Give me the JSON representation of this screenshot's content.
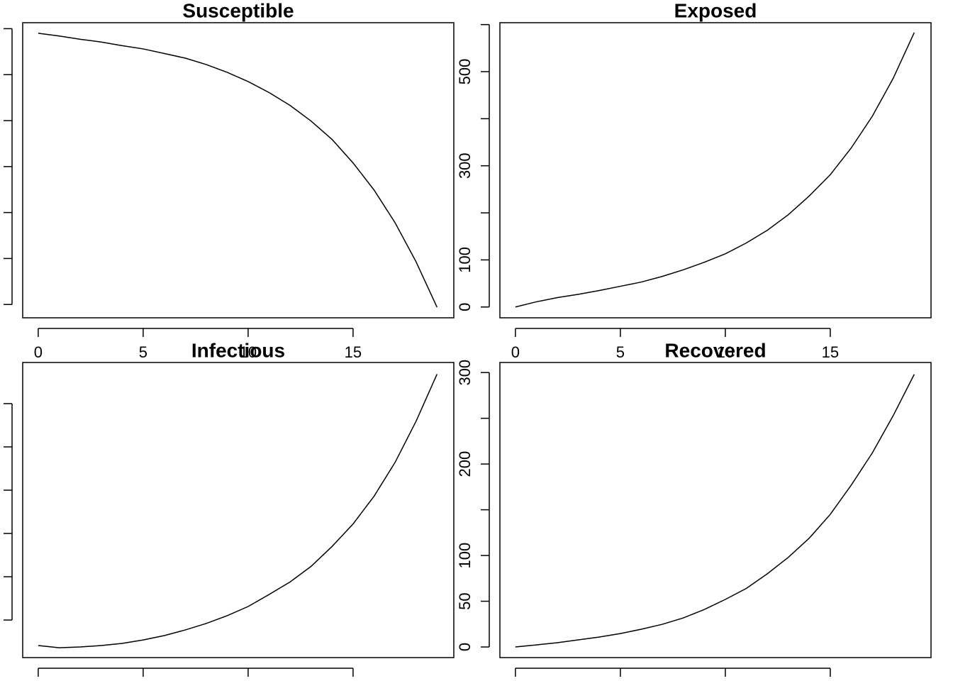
{
  "chart_data": [
    {
      "type": "line",
      "title": "Susceptible",
      "color": "#000000",
      "x": [
        0,
        1,
        2,
        3,
        4,
        5,
        6,
        7,
        8,
        9,
        10,
        11,
        12,
        13,
        14,
        15,
        16,
        17,
        18,
        19
      ],
      "values": [
        990,
        984,
        977,
        971,
        963,
        956,
        946,
        936,
        922,
        905,
        885,
        861,
        833,
        799,
        759,
        708,
        649,
        578,
        493,
        394
      ],
      "xlim": [
        -0.74,
        19.8
      ],
      "ylim": [
        371,
        1013
      ],
      "xticks": [
        0,
        5,
        10,
        15
      ],
      "xticks_unlabeled": [],
      "yticks": [],
      "yticks_unlabeled": [
        400,
        500,
        600,
        700,
        800,
        900,
        1000
      ]
    },
    {
      "type": "line",
      "title": "Exposed",
      "color": "#000000",
      "x": [
        0,
        1,
        2,
        3,
        4,
        5,
        6,
        7,
        8,
        9,
        10,
        11,
        12,
        13,
        14,
        15,
        16,
        17,
        18,
        19
      ],
      "values": [
        0,
        11,
        20,
        27,
        35,
        44,
        53,
        65,
        79,
        95,
        113,
        136,
        163,
        196,
        236,
        281,
        338,
        405,
        486,
        583
      ],
      "xlim": [
        -0.74,
        19.8
      ],
      "ylim": [
        -23,
        604
      ],
      "xticks": [
        0,
        5,
        10,
        15
      ],
      "xticks_unlabeled": [],
      "yticks": [
        0,
        100,
        300,
        500
      ],
      "yticks_unlabeled": [
        200,
        400,
        600
      ]
    },
    {
      "type": "line",
      "title": "Infectious",
      "color": "#000000",
      "x": [
        0,
        1,
        2,
        3,
        4,
        5,
        6,
        7,
        8,
        9,
        10,
        11,
        12,
        13,
        14,
        15,
        16,
        17,
        18,
        19
      ],
      "values": [
        20.5,
        18,
        18.9,
        20.5,
        23,
        27,
        32,
        38.5,
        46,
        55,
        65.6,
        79.5,
        94,
        112,
        135,
        161,
        193,
        232,
        279.5,
        334
      ],
      "xlim": [
        -0.74,
        19.8
      ],
      "ylim": [
        6.6,
        347.5
      ],
      "xticks": [],
      "xticks_unlabeled": [
        0,
        5,
        10,
        15
      ],
      "yticks": [],
      "yticks_unlabeled": [
        50,
        100,
        150,
        200,
        250,
        300
      ]
    },
    {
      "type": "line",
      "title": "Recovered",
      "color": "#000000",
      "x": [
        0,
        1,
        2,
        3,
        4,
        5,
        6,
        7,
        8,
        9,
        10,
        11,
        12,
        13,
        14,
        15,
        16,
        17,
        18,
        19
      ],
      "values": [
        0,
        2.3,
        4.7,
        7.8,
        10.9,
        14.7,
        19.4,
        24.8,
        31.8,
        41,
        52,
        64,
        80,
        98,
        119,
        145,
        177,
        212,
        253,
        298
      ],
      "xlim": [
        -0.74,
        19.8
      ],
      "ylim": [
        -11.6,
        311
      ],
      "xticks": [],
      "xticks_unlabeled": [
        0,
        5,
        10,
        15
      ],
      "yticks": [
        0,
        50,
        100,
        200,
        300
      ],
      "yticks_unlabeled": [
        150,
        250
      ]
    }
  ]
}
